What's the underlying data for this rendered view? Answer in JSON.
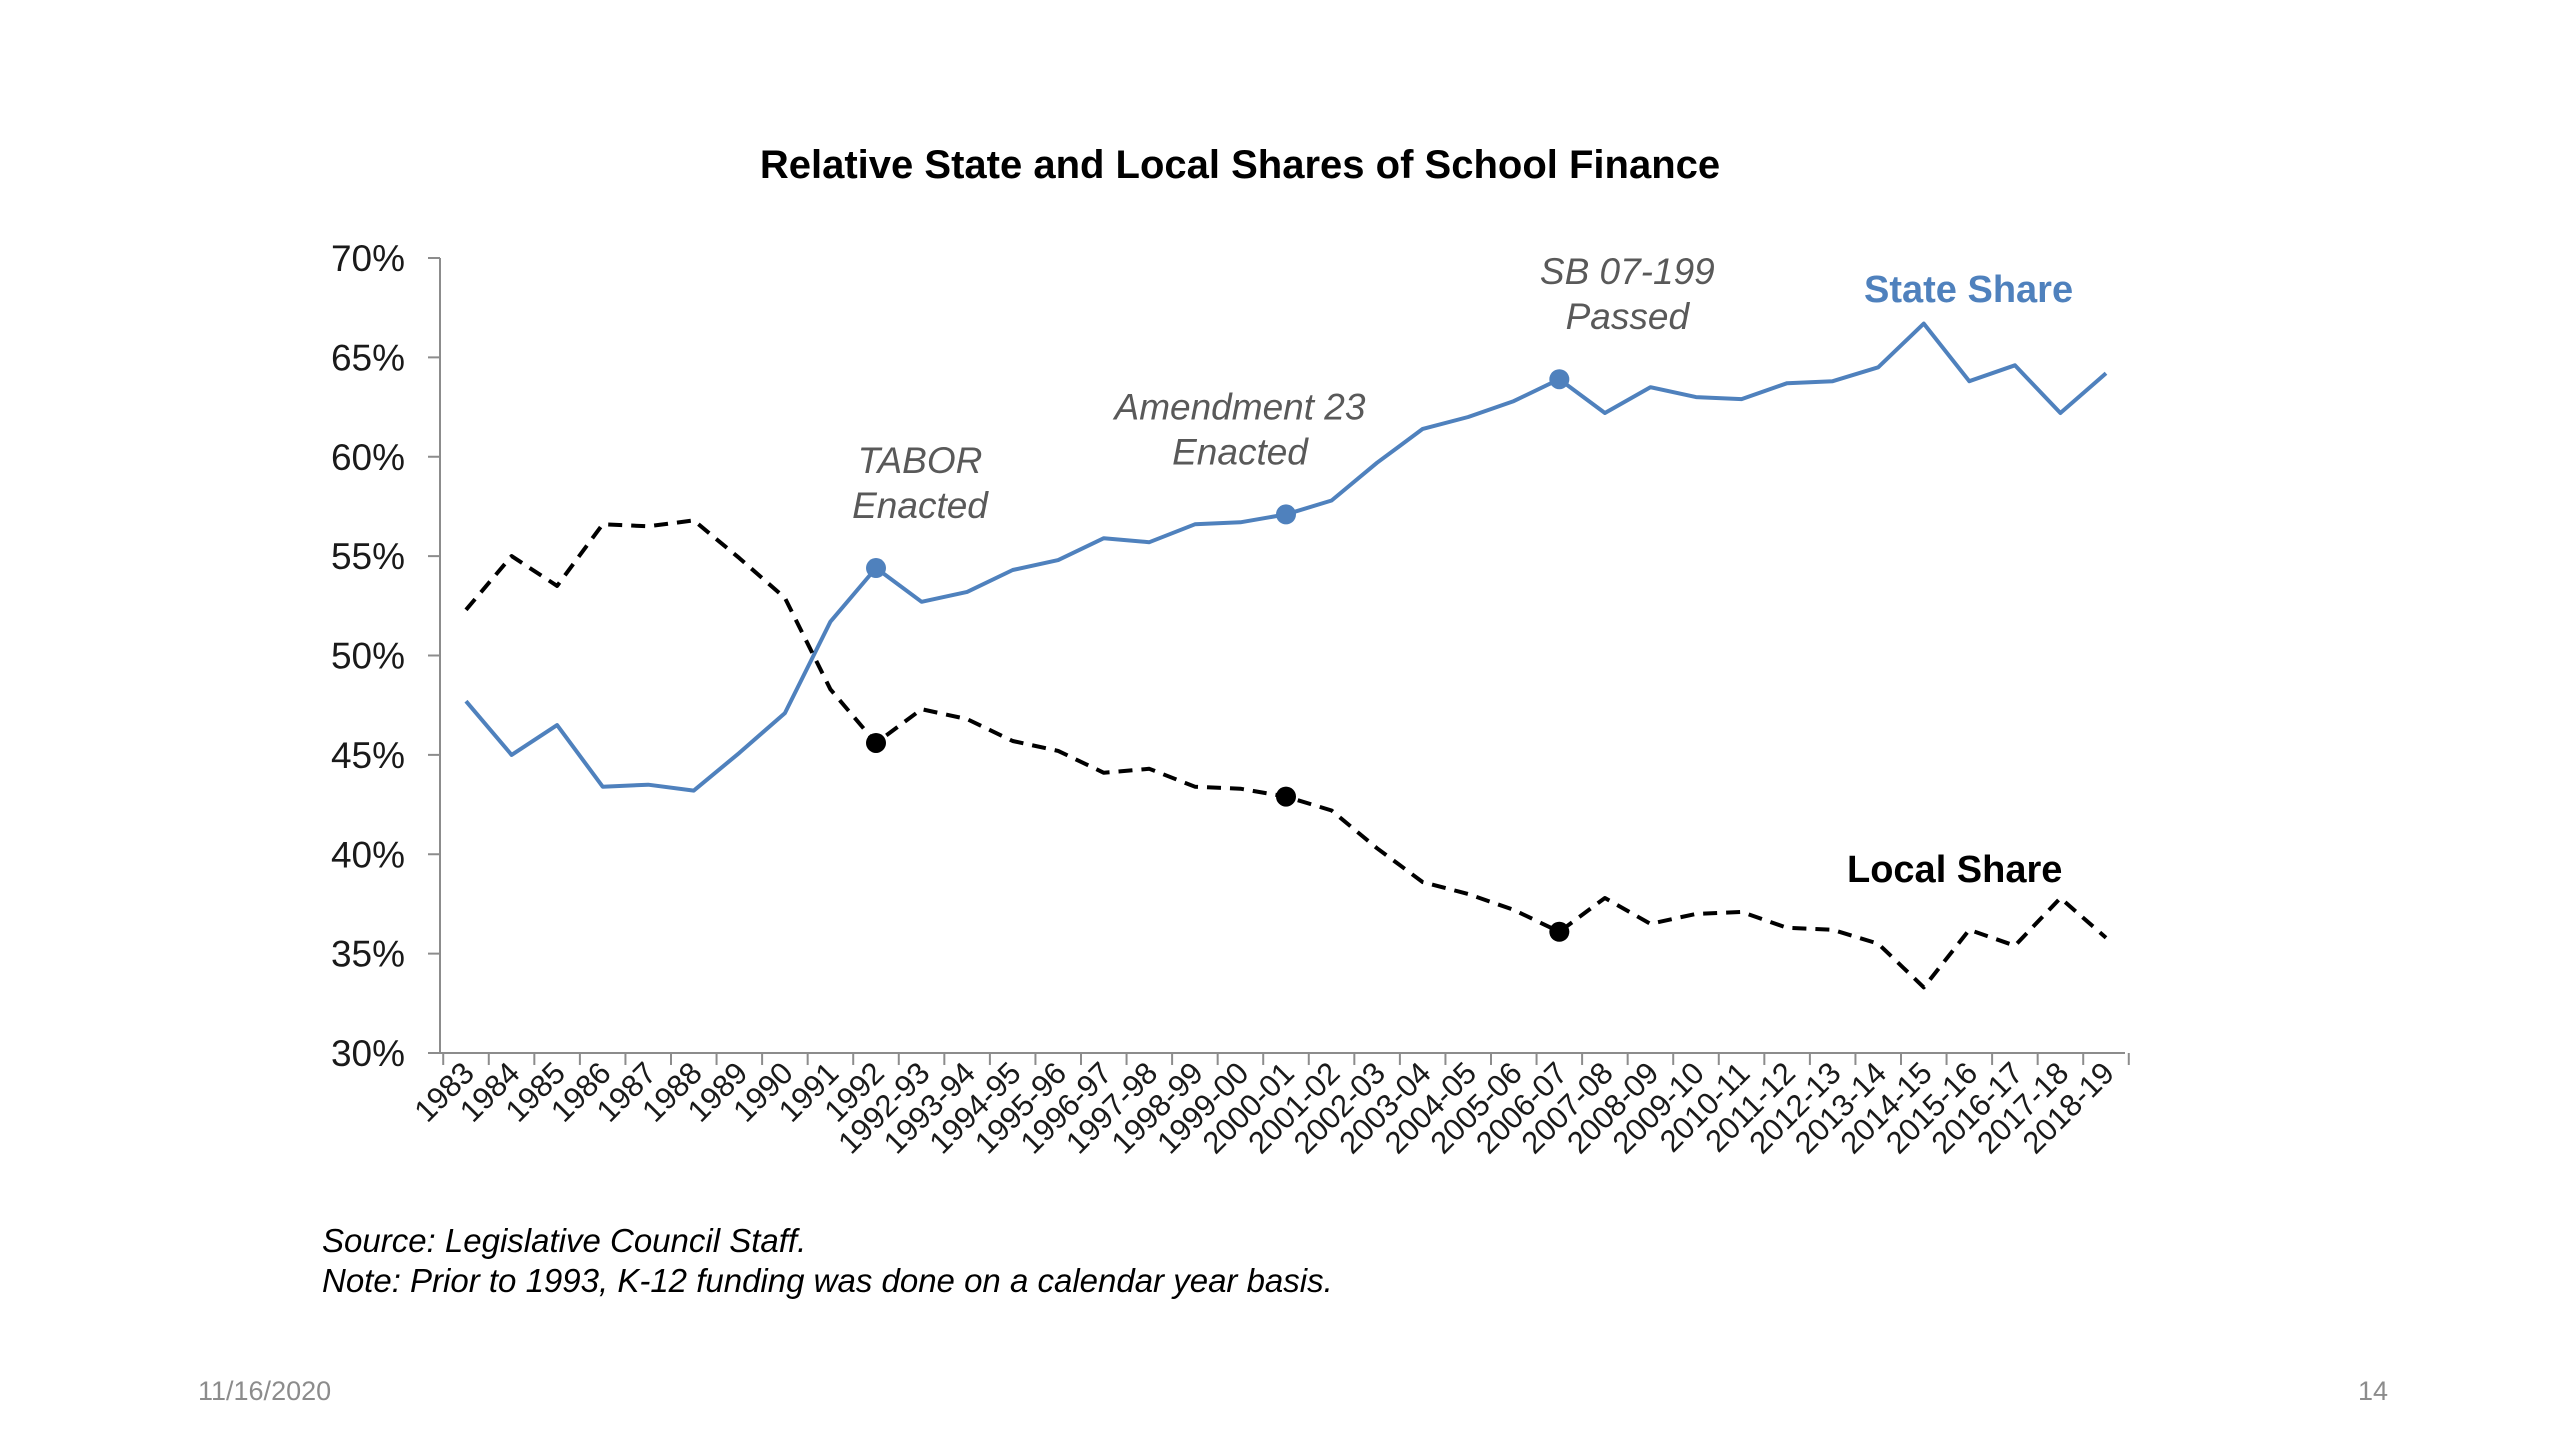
{
  "slide": {
    "date": "11/16/2020",
    "page_number": "14"
  },
  "footnotes": {
    "source": "Source: Legislative Council Staff.",
    "note": "Note: Prior to 1993, K-12 funding was done on a calendar year basis."
  },
  "chart_data": {
    "type": "line",
    "title": "Relative State and Local Shares of School Finance",
    "xlabel": "",
    "ylabel": "",
    "ylim": [
      30,
      70
    ],
    "yticks": [
      "30%",
      "35%",
      "40%",
      "45%",
      "50%",
      "55%",
      "60%",
      "65%",
      "70%"
    ],
    "grid": false,
    "categories": [
      "1983",
      "1984",
      "1985",
      "1986",
      "1987",
      "1988",
      "1989",
      "1990",
      "1991",
      "1992",
      "1992-93",
      "1993-94",
      "1994-95",
      "1995-96",
      "1996-97",
      "1997-98",
      "1998-99",
      "1999-00",
      "2000-01",
      "2001-02",
      "2002-03",
      "2003-04",
      "2004-05",
      "2005-06",
      "2006-07",
      "2007-08",
      "2008-09",
      "2009-10",
      "2010-11",
      "2011-12",
      "2012-13",
      "2013-14",
      "2014-15",
      "2015-16",
      "2016-17",
      "2017-18",
      "2018-19"
    ],
    "series": [
      {
        "name": "State Share",
        "color": "#4f81bd",
        "style": "solid",
        "values": [
          47.7,
          45.0,
          46.5,
          43.4,
          43.5,
          43.2,
          45.1,
          47.1,
          51.7,
          54.4,
          52.7,
          53.2,
          54.3,
          54.8,
          55.9,
          55.7,
          56.6,
          56.7,
          57.1,
          57.8,
          59.7,
          61.4,
          62.0,
          62.8,
          63.9,
          62.2,
          63.5,
          63.0,
          62.9,
          63.7,
          63.8,
          64.5,
          66.7,
          63.8,
          64.6,
          62.2,
          64.2
        ]
      },
      {
        "name": "Local Share",
        "color": "#000000",
        "style": "dashed",
        "values": [
          52.3,
          55.0,
          53.5,
          56.6,
          56.5,
          56.8,
          54.9,
          52.9,
          48.3,
          45.6,
          47.3,
          46.8,
          45.7,
          45.2,
          44.1,
          44.3,
          43.4,
          43.3,
          42.9,
          42.2,
          40.3,
          38.6,
          38.0,
          37.2,
          36.1,
          37.8,
          36.5,
          37.0,
          37.1,
          36.3,
          36.2,
          35.5,
          33.3,
          36.2,
          35.4,
          37.8,
          35.8
        ]
      }
    ],
    "markers": [
      {
        "category": "1992",
        "state": 54.4,
        "local": 45.6
      },
      {
        "category": "2000-01",
        "state": 57.1,
        "local": 42.9
      },
      {
        "category": "2006-07",
        "state": 63.9,
        "local": 36.1
      }
    ],
    "annotations": [
      {
        "lines": [
          "TABOR",
          "Enacted"
        ],
        "category": "1992"
      },
      {
        "lines": [
          "Amendment 23",
          "Enacted"
        ],
        "category": "2000-01"
      },
      {
        "lines": [
          "SB 07-199",
          "Passed"
        ],
        "category": "2006-07"
      }
    ]
  }
}
